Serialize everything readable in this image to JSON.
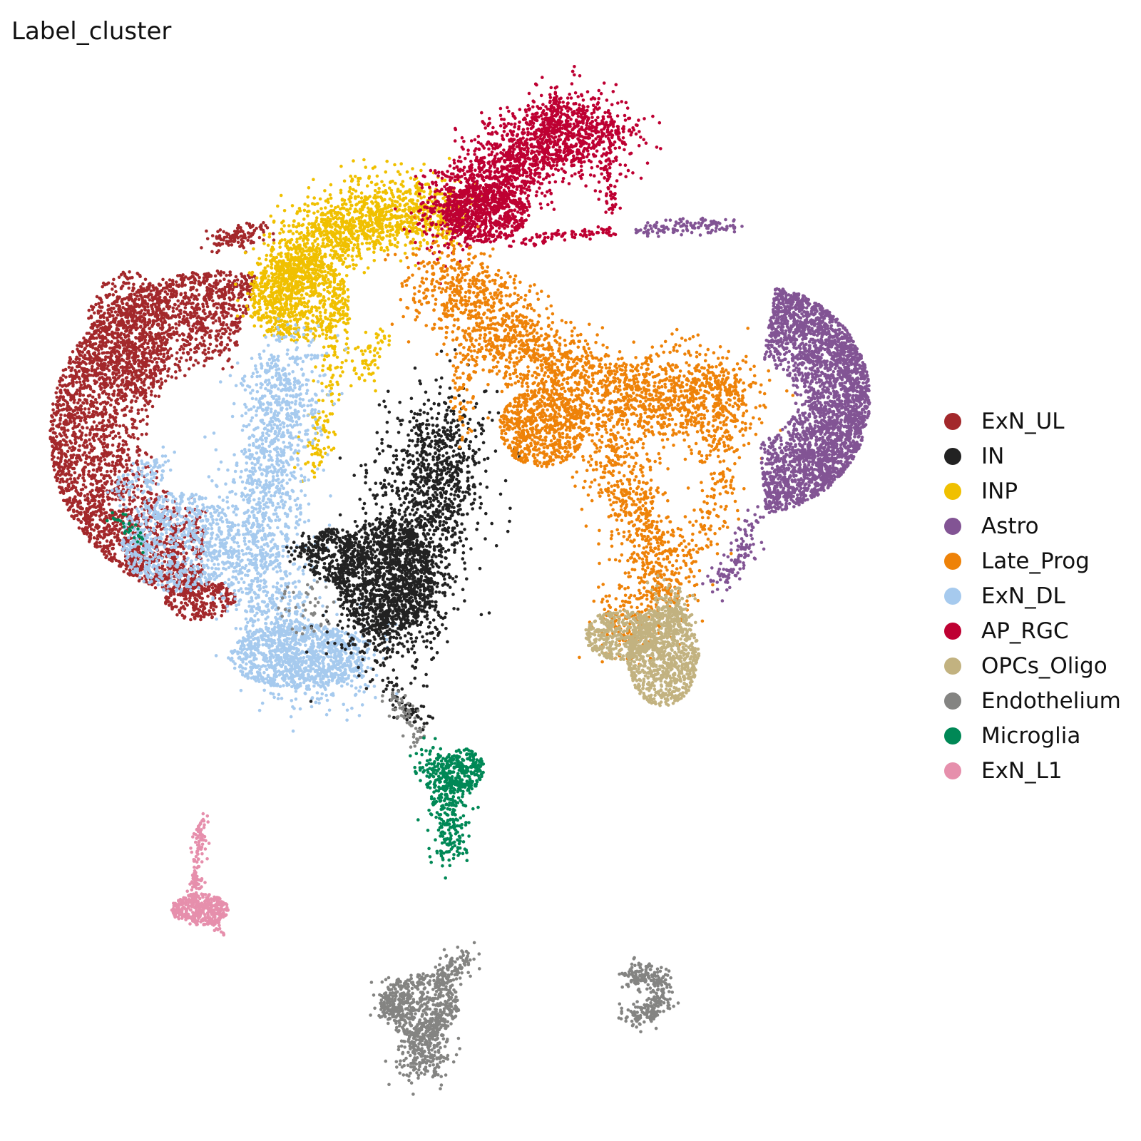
{
  "chart_data": {
    "type": "scatter",
    "title": "Label_cluster",
    "xlabel": "",
    "ylabel": "",
    "grid": false,
    "axes_visible": false,
    "legend_placement": "right",
    "series": [
      {
        "name": "ExN_UL",
        "color": "#a3282b"
      },
      {
        "name": "IN",
        "color": "#222222"
      },
      {
        "name": "INP",
        "color": "#f0c000"
      },
      {
        "name": "Astro",
        "color": "#825494"
      },
      {
        "name": "Late_Prog",
        "color": "#ee8208"
      },
      {
        "name": "ExN_DL",
        "color": "#a6caee"
      },
      {
        "name": "AP_RGC",
        "color": "#be0032"
      },
      {
        "name": "OPCs_Oligo",
        "color": "#c2b280"
      },
      {
        "name": "Endothelium",
        "color": "#848482"
      },
      {
        "name": "Microglia",
        "color": "#008856"
      },
      {
        "name": "ExN_L1",
        "color": "#e68fac"
      }
    ]
  }
}
